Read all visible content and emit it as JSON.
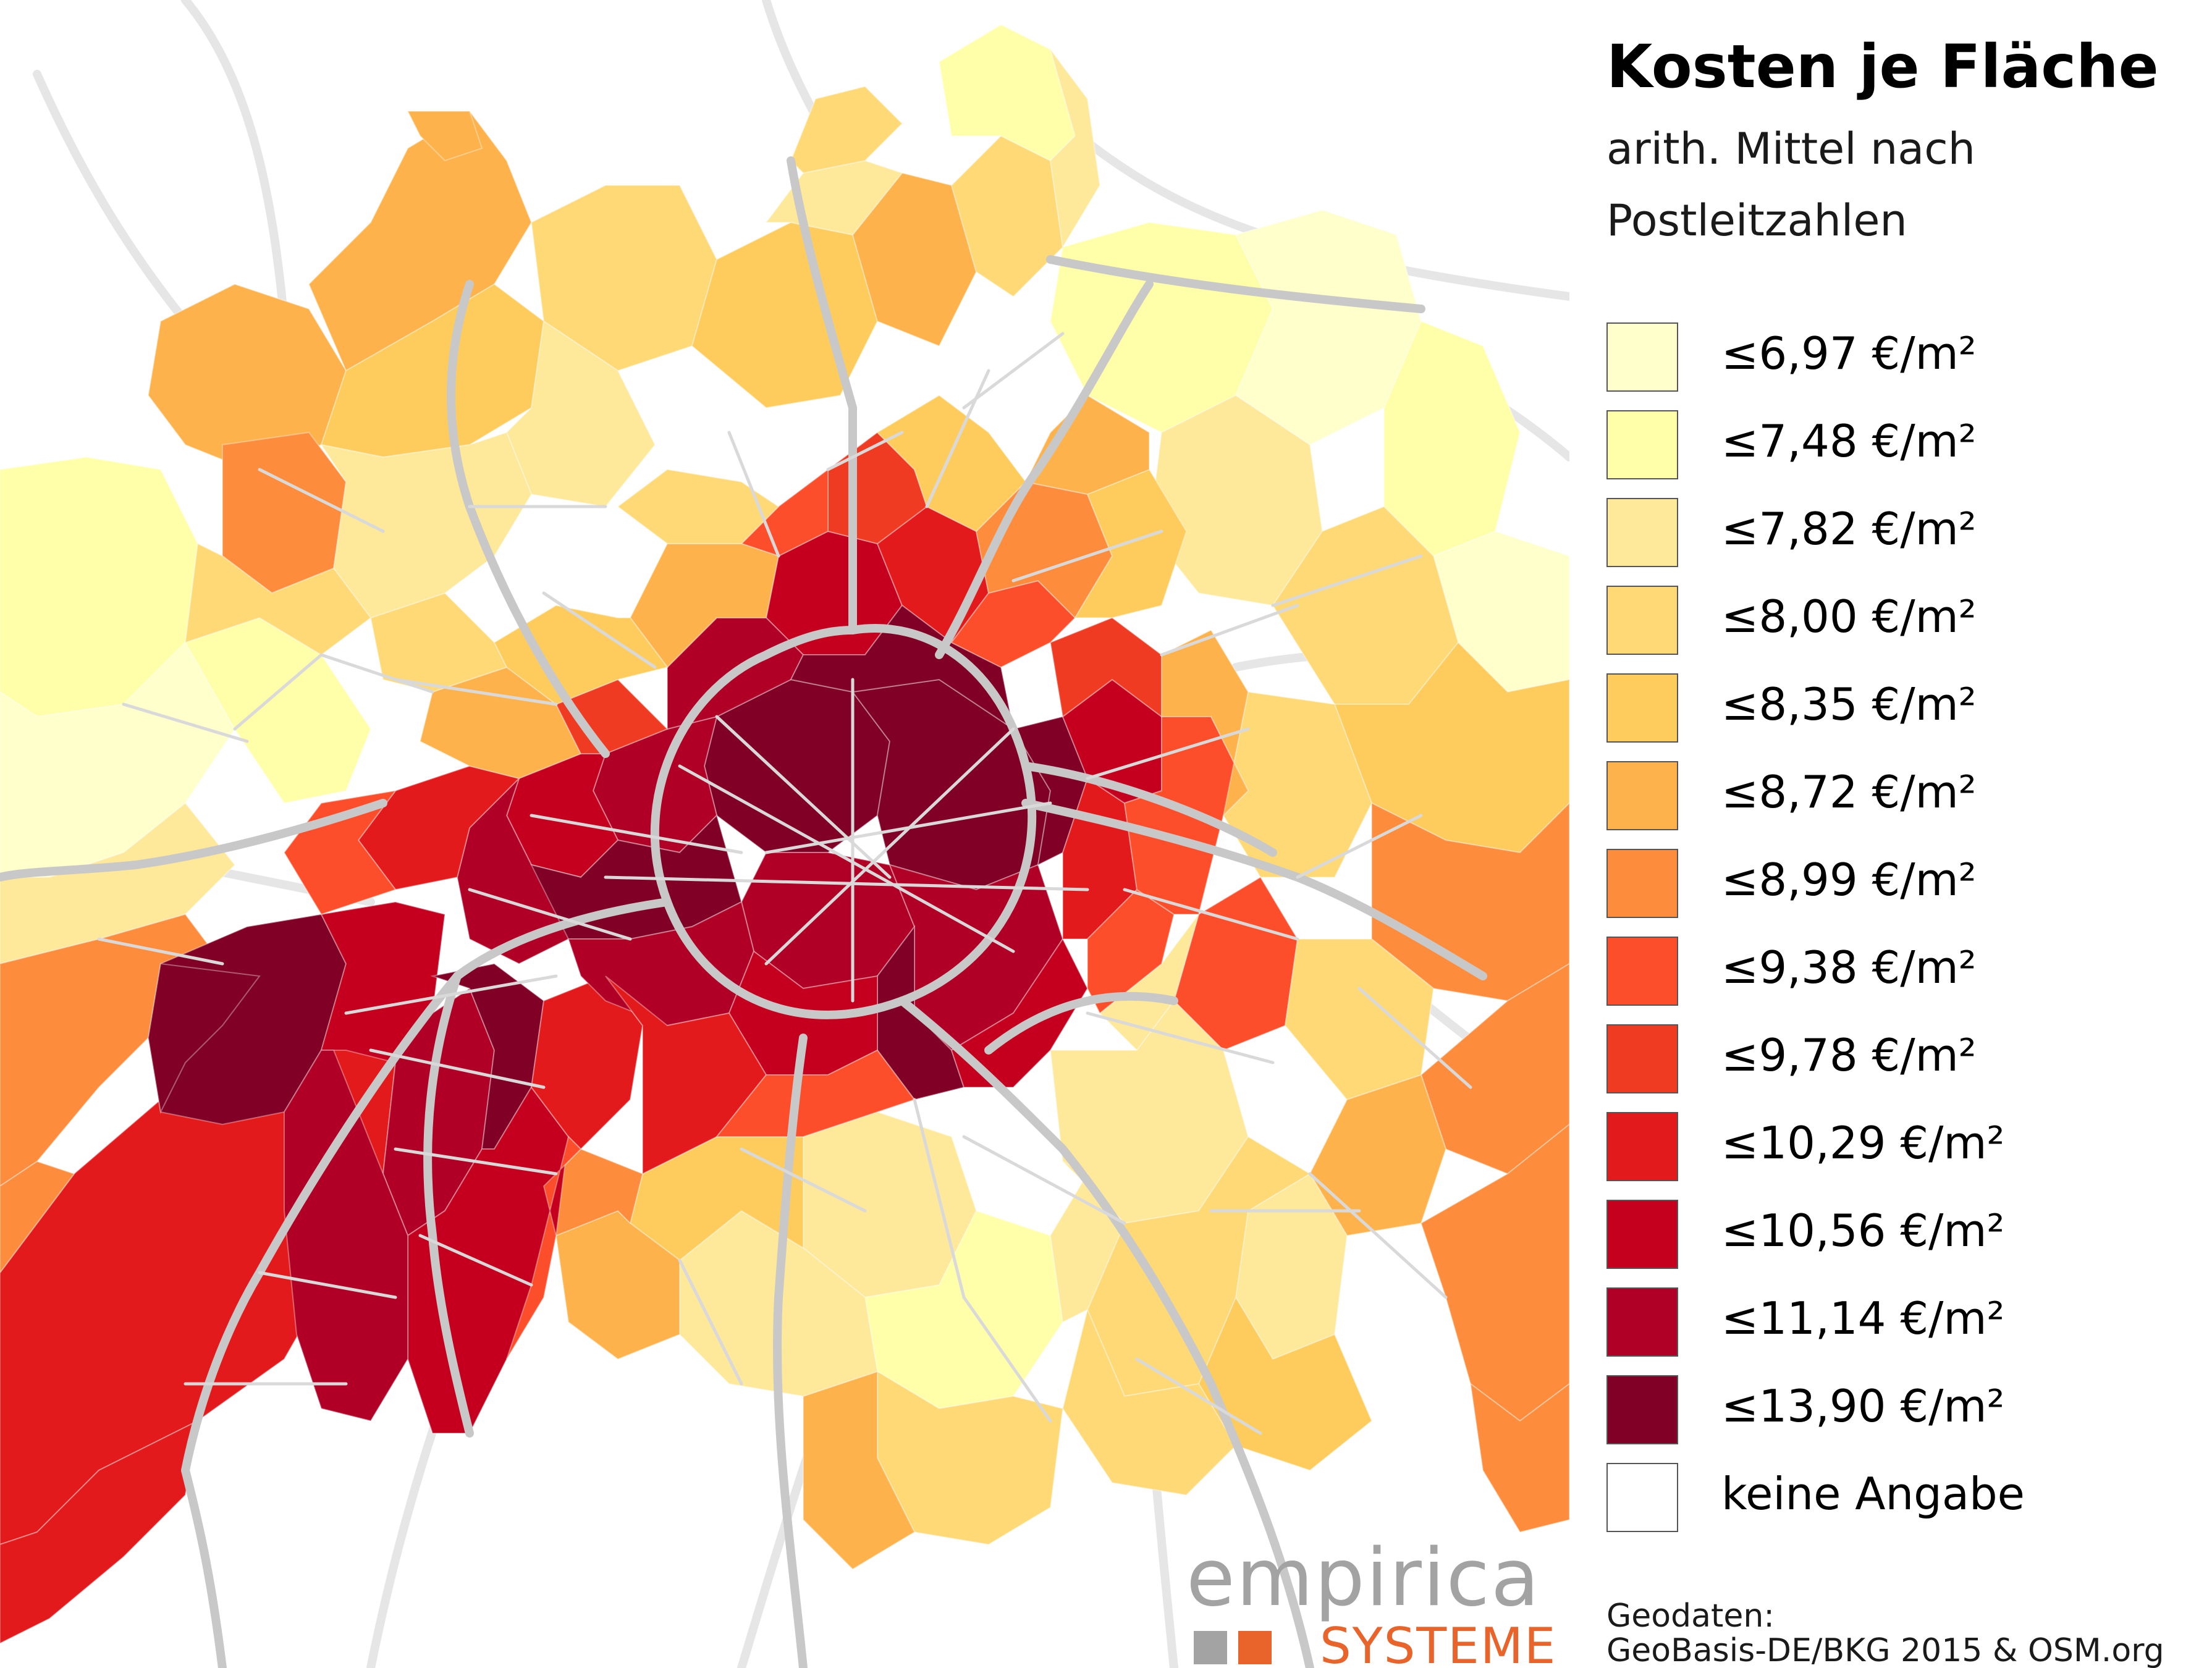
{
  "title": "Kosten je Fläche",
  "subtitle": {
    "line1": "arith. Mittel nach",
    "line2": "Postleitzahlen"
  },
  "legend": [
    {
      "label": "≤6,97 €/m²",
      "color": "#ffffcc"
    },
    {
      "label": "≤7,48 €/m²",
      "color": "#ffffaa"
    },
    {
      "label": "≤7,82 €/m²",
      "color": "#fee899"
    },
    {
      "label": "≤8,00 €/m²",
      "color": "#fed976"
    },
    {
      "label": "≤8,35 €/m²",
      "color": "#fecc5c"
    },
    {
      "label": "≤8,72 €/m²",
      "color": "#feb24c"
    },
    {
      "label": "≤8,99 €/m²",
      "color": "#fd8d3c"
    },
    {
      "label": "≤9,38 €/m²",
      "color": "#fc4e2a"
    },
    {
      "label": "≤9,78 €/m²",
      "color": "#ef3b22"
    },
    {
      "label": "≤10,29 €/m²",
      "color": "#e31a1c"
    },
    {
      "label": "≤10,56 €/m²",
      "color": "#c4001e"
    },
    {
      "label": "≤11,14 €/m²",
      "color": "#b10026"
    },
    {
      "label": "≤13,90 €/m²",
      "color": "#800026"
    },
    {
      "label": "keine Angabe",
      "color": "#ffffff"
    }
  ],
  "logo": {
    "name": "empirica",
    "sub": "SYSTEME",
    "name_color": "#a3a3a3",
    "sub_color": "#e8642a",
    "square_colors": [
      "#a3a3a3",
      "#e8642a"
    ]
  },
  "source": {
    "line1": "Geodaten:",
    "line2": "GeoBasis-DE/BKG 2015 & OSM.org"
  },
  "map": {
    "road_color": "#d9d9d9",
    "major_road_color": "#c8c8c8"
  }
}
